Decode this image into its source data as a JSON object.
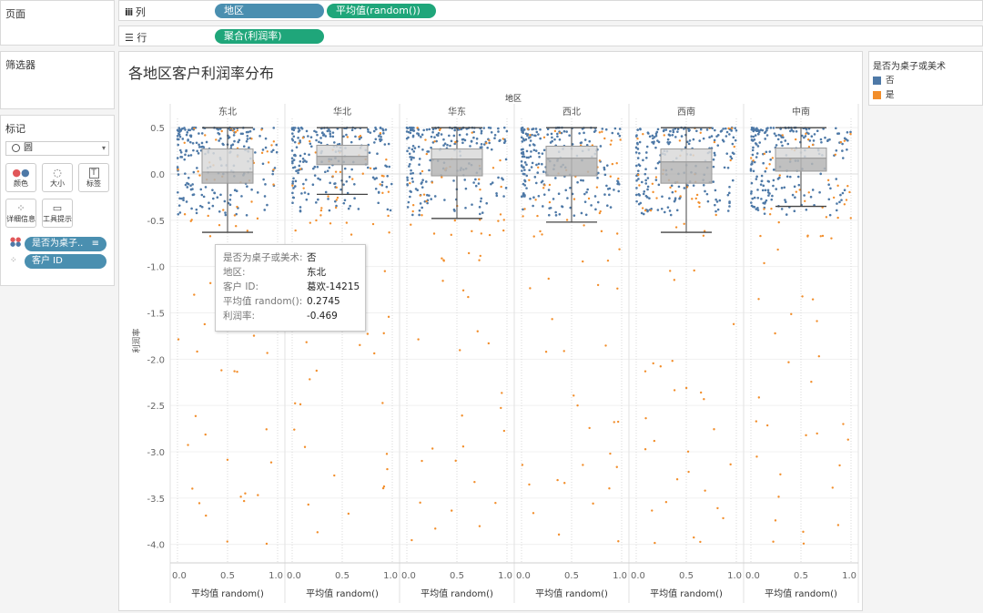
{
  "left": {
    "pages_title": "页面",
    "filters_title": "筛选器",
    "marks_title": "标记",
    "mark_type": "圆",
    "buttons": [
      {
        "label": "颜色",
        "icon": "color-dots-icon"
      },
      {
        "label": "大小",
        "icon": "size-icon"
      },
      {
        "label": "标签",
        "icon": "label-icon",
        "glyph": "T"
      },
      {
        "label": "详细信息",
        "icon": "detail-icon"
      },
      {
        "label": "工具提示",
        "icon": "tooltip-icon"
      }
    ],
    "mark_pills": [
      {
        "label": "是否为桌子..",
        "icon": "color-dots-icon"
      },
      {
        "label": "客户 ID",
        "icon": "detail-icon"
      }
    ]
  },
  "shelves": {
    "columns": {
      "label": "列",
      "pills": [
        "地区",
        "平均值(random())"
      ]
    },
    "rows": {
      "label": "行",
      "pills": [
        "聚合(利润率)"
      ]
    }
  },
  "chart": {
    "title": "各地区客户利润率分布",
    "header_label": "地区",
    "colors": {
      "no": "#4e79a7",
      "yes": "#f28e2b"
    }
  },
  "chart_data": {
    "type": "scatter",
    "title": "各地区客户利润率分布",
    "column_header": "地区",
    "regions": [
      "东北",
      "华北",
      "华东",
      "西北",
      "西南",
      "中南"
    ],
    "xlabel": "平均值 random()",
    "ylabel": "利润率",
    "xlim": [
      0,
      1
    ],
    "ylim": [
      -4.2,
      0.6
    ],
    "x_ticks": [
      "0.0",
      "0.5",
      "1.0"
    ],
    "y_ticks": [
      "0.5",
      "0.0",
      "-0.5",
      "-1.0",
      "-1.5",
      "-2.0",
      "-2.5",
      "-3.0",
      "-3.5",
      "-4.0"
    ],
    "y_tick_values": [
      0.5,
      0,
      -0.5,
      -1,
      -1.5,
      -2,
      -2.5,
      -3,
      -3.5,
      -4
    ],
    "legend": {
      "title": "是否为桌子或美术",
      "position": "right",
      "entries": [
        {
          "label": "否",
          "color": "#4e79a7"
        },
        {
          "label": "是",
          "color": "#f28e2b"
        }
      ]
    },
    "boxplots": [
      {
        "region": "东北",
        "whisker_low": -0.63,
        "q1": -0.1,
        "median": 0.02,
        "q3": 0.27,
        "whisker_high": 0.5
      },
      {
        "region": "华北",
        "whisker_low": -0.22,
        "q1": 0.1,
        "median": 0.19,
        "q3": 0.31,
        "whisker_high": 0.5
      },
      {
        "region": "华东",
        "whisker_low": -0.48,
        "q1": -0.02,
        "median": 0.16,
        "q3": 0.27,
        "whisker_high": 0.5
      },
      {
        "region": "西北",
        "whisker_low": -0.52,
        "q1": -0.02,
        "median": 0.17,
        "q3": 0.3,
        "whisker_high": 0.5
      },
      {
        "region": "西南",
        "whisker_low": -0.63,
        "q1": -0.1,
        "median": 0.13,
        "q3": 0.27,
        "whisker_high": 0.5
      },
      {
        "region": "中南",
        "whisker_low": -0.35,
        "q1": 0.03,
        "median": 0.17,
        "q3": 0.28,
        "whisker_high": 0.5
      }
    ]
  },
  "tooltip": {
    "rows": [
      {
        "key": "是否为桌子或美术:",
        "value": "否"
      },
      {
        "key": "地区:",
        "value": "东北"
      },
      {
        "key": "客户 ID:",
        "value": "葛欢-14215"
      },
      {
        "key": "平均值 random():",
        "value": "0.2745"
      },
      {
        "key": "利润率:",
        "value": "-0.469"
      }
    ]
  }
}
